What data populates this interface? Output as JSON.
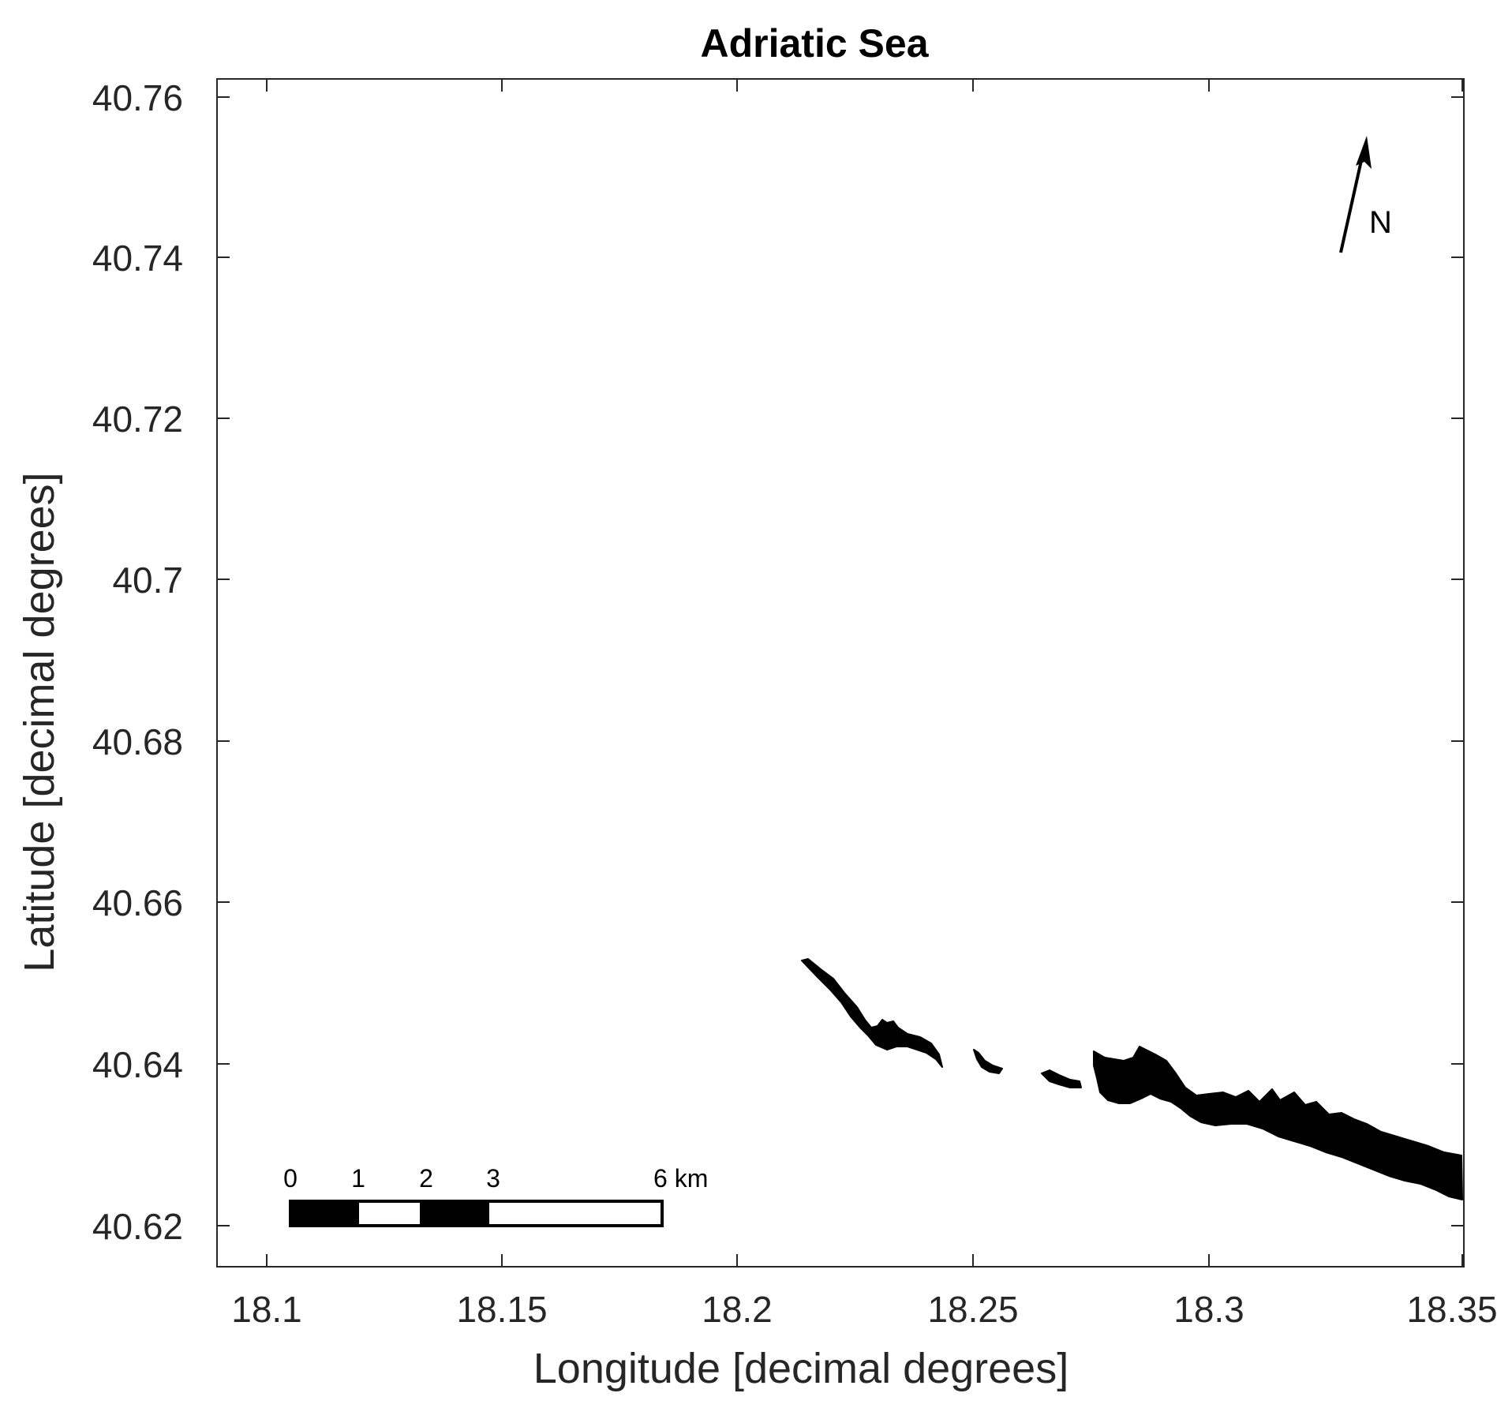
{
  "map": {
    "title": "Adriatic Sea",
    "xlabel": "Longitude [decimal degrees]",
    "ylabel": "Latitude [decimal degrees]",
    "north_label": "N",
    "x_ticks": [
      "18.1",
      "18.15",
      "18.2",
      "18.25",
      "18.3",
      "18.35"
    ],
    "y_ticks": [
      "40.76",
      "40.74",
      "40.72",
      "40.7",
      "40.68",
      "40.66",
      "40.64",
      "40.62"
    ],
    "scale_bar": {
      "labels": [
        "0",
        "1",
        "2",
        "3",
        "6 km"
      ]
    },
    "colors": {
      "land": "#000000",
      "frame": "#262626",
      "background": "#ffffff"
    }
  }
}
